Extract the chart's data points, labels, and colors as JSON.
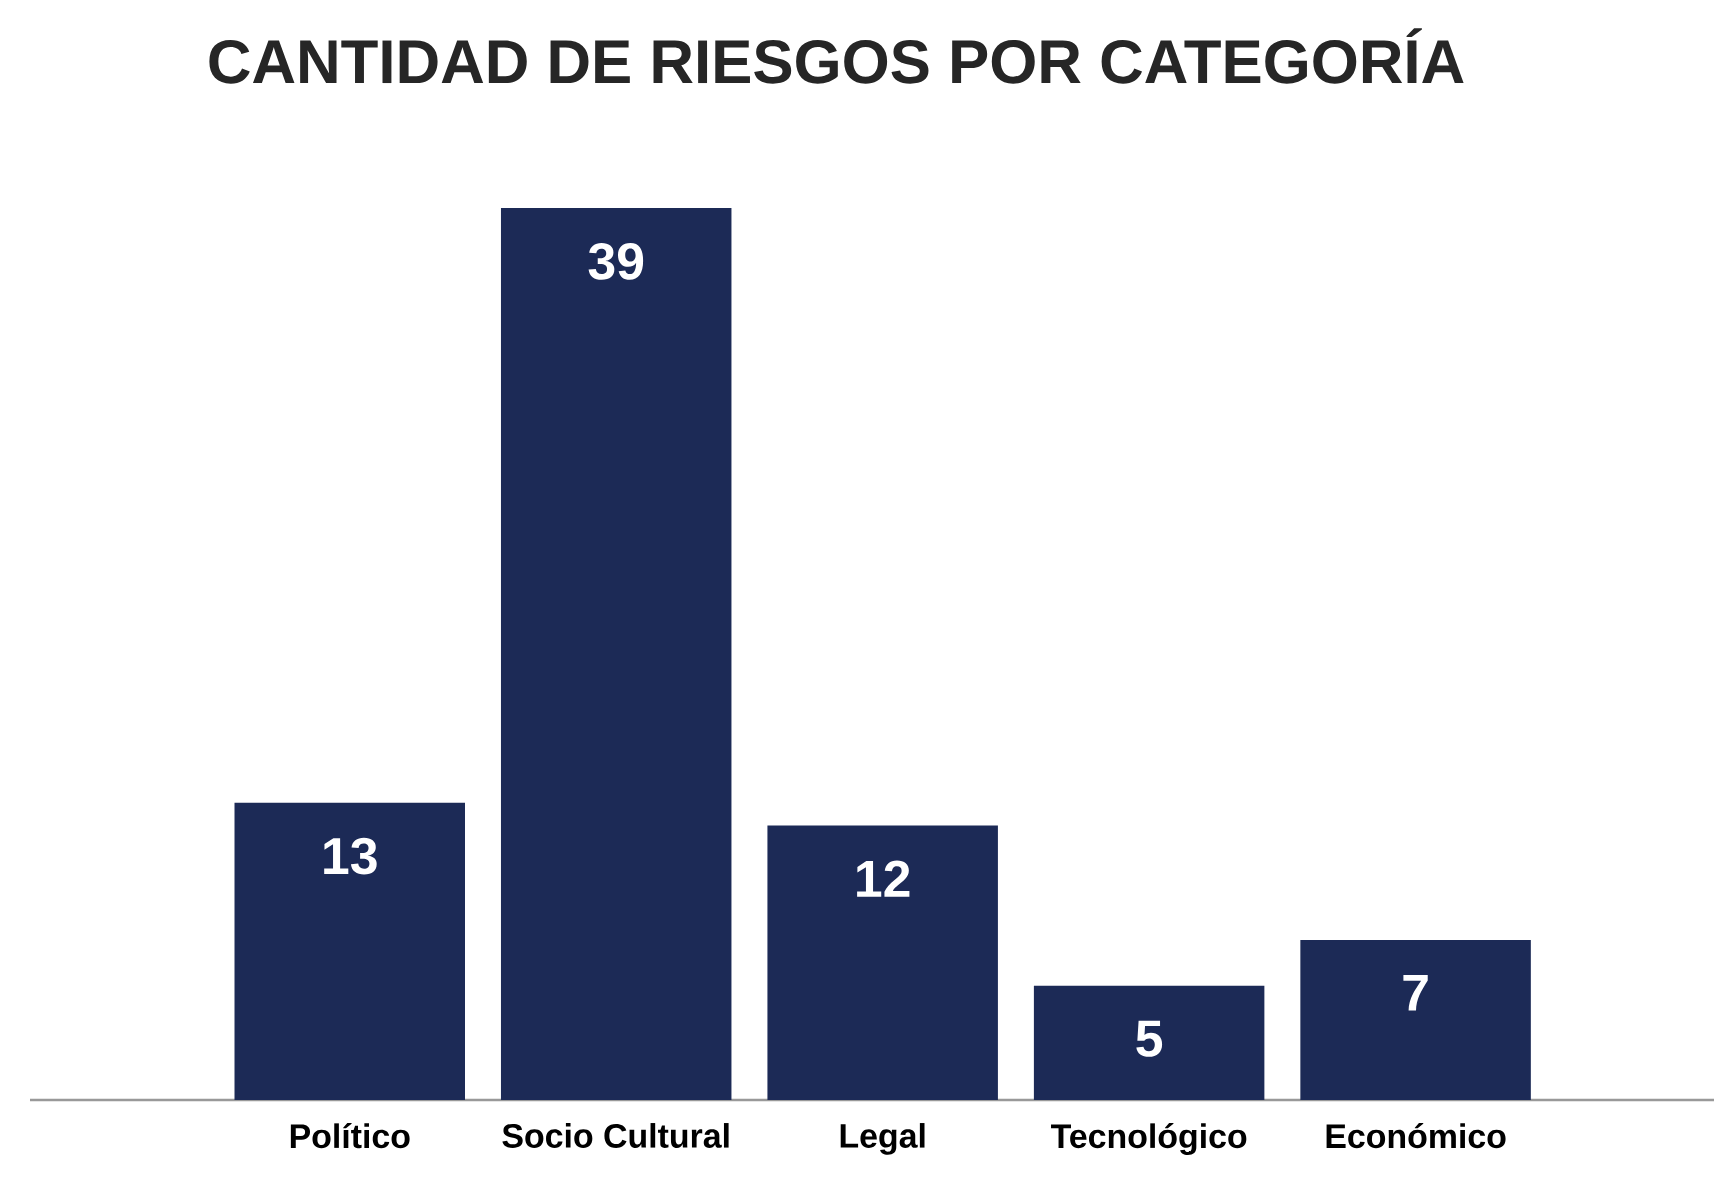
{
  "chart_data": {
    "type": "bar",
    "title": "CANTIDAD DE RIESGOS POR CATEGORÍA",
    "categories": [
      "Político",
      "Socio Cultural",
      "Legal",
      "Tecnológico",
      "Económico"
    ],
    "values": [
      13,
      39,
      12,
      5,
      7
    ],
    "color": "#1c2a56",
    "data_labels": true
  }
}
